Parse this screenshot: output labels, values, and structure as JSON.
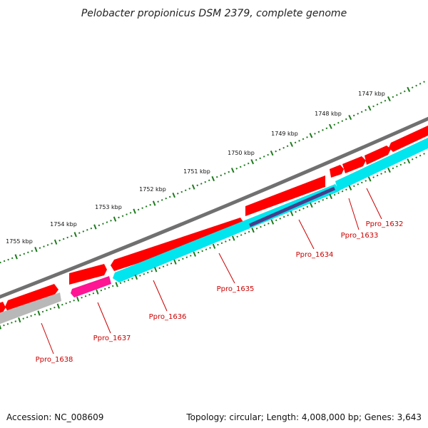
{
  "title": "Pelobacter propionicus DSM 2379, complete genome",
  "accession": "Accession: NC_008609",
  "summary": "Topology: circular; Length: 4,008,000 bp; Genes: 3,643",
  "colors": {
    "backbone": "#808080",
    "forward_cds": "#ff0000",
    "reverse_cds": "#00e5ee",
    "pink_feature": "#ff1493",
    "gray_feature": "#b8b8b8",
    "navy_feature": "#483d8b",
    "ticks": "#1e7a1e",
    "gene_label": "#cc0000"
  },
  "kbp_labels": [
    "1747 kbp",
    "1748 kbp",
    "1749 kbp",
    "1750 kbp",
    "1751 kbp",
    "1752 kbp",
    "1753 kbp",
    "1754 kbp",
    "1755 kbp"
  ],
  "genes": [
    "Ppro_1632",
    "Ppro_1633",
    "Ppro_1634",
    "Ppro_1635",
    "Ppro_1636",
    "Ppro_1637",
    "Ppro_1638"
  ]
}
